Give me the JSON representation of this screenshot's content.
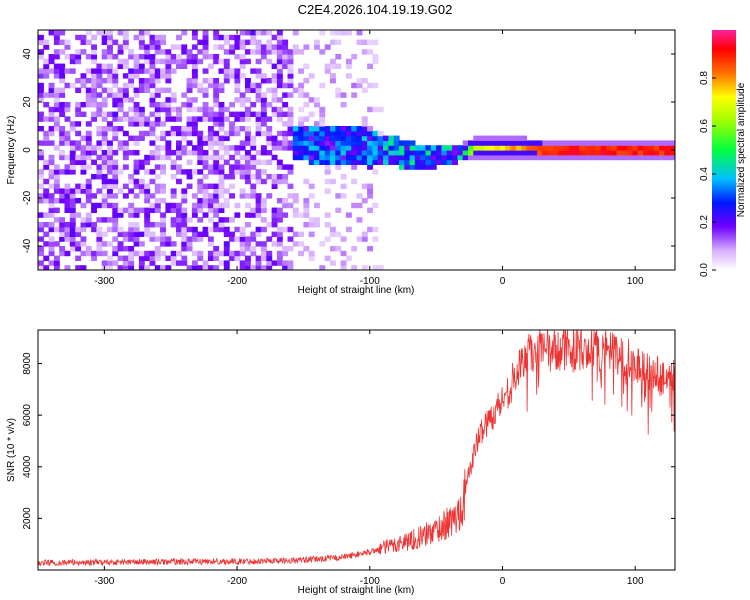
{
  "title": "C2E4.2026.104.19.19.G02",
  "chart_data": [
    {
      "type": "heatmap",
      "title": "C2E4.2026.104.19.19.G02",
      "xlabel": "Height of straight line (km)",
      "ylabel": "Frequency (Hz)",
      "xlim": [
        -350,
        130
      ],
      "ylim": [
        -50,
        50
      ],
      "xticks": [
        -300,
        -200,
        -100,
        0,
        100
      ],
      "yticks": [
        -40,
        -20,
        0,
        20,
        40
      ],
      "description_of_values": "Spectrogram: broadband noise from -350 to about -150 km, signal converging to ~0 Hz between -150 and -30 km, narrow peak at 0 Hz from -30 to 130 km",
      "ridge": [
        {
          "x": -150,
          "f": 3,
          "amp": 0.25
        },
        {
          "x": -120,
          "f": 2,
          "amp": 0.3
        },
        {
          "x": -90,
          "f": 0,
          "amp": 0.45
        },
        {
          "x": -60,
          "f": -3,
          "amp": 0.5
        },
        {
          "x": -40,
          "f": -2,
          "amp": 0.45
        },
        {
          "x": -20,
          "f": 1,
          "amp": 0.7
        },
        {
          "x": 0,
          "f": 1,
          "amp": 0.8
        },
        {
          "x": 30,
          "f": 0,
          "amp": 0.95
        },
        {
          "x": 130,
          "f": 0,
          "amp": 0.95
        }
      ],
      "colorbar": {
        "label": "Normalized spectral amplitude",
        "range": [
          0,
          1
        ],
        "ticks": [
          0.0,
          0.2,
          0.4,
          0.6,
          0.8
        ]
      }
    },
    {
      "type": "line",
      "xlabel": "Height of straight line (km)",
      "ylabel": "SNR (10 * v/v)",
      "xlim": [
        -350,
        130
      ],
      "ylim": [
        0,
        9300
      ],
      "xticks": [
        -300,
        -200,
        -100,
        0,
        100
      ],
      "yticks": [
        2000,
        4000,
        6000,
        8000
      ],
      "series": [
        {
          "name": "SNR",
          "color": "#ee3333",
          "x": [
            -350,
            -300,
            -250,
            -200,
            -150,
            -120,
            -100,
            -80,
            -60,
            -45,
            -35,
            -30,
            -25,
            -20,
            -15,
            -10,
            -5,
            0,
            5,
            10,
            15,
            20,
            30,
            40,
            50,
            60,
            70,
            80,
            90,
            100,
            110,
            120,
            130
          ],
          "y": [
            280,
            300,
            320,
            330,
            380,
            500,
            700,
            1000,
            1300,
            1700,
            2000,
            2600,
            3800,
            4800,
            5500,
            5800,
            6200,
            6600,
            7000,
            7600,
            8000,
            8400,
            8500,
            8550,
            8600,
            8550,
            8500,
            8450,
            8300,
            8000,
            7700,
            7500,
            7600
          ]
        }
      ]
    }
  ]
}
